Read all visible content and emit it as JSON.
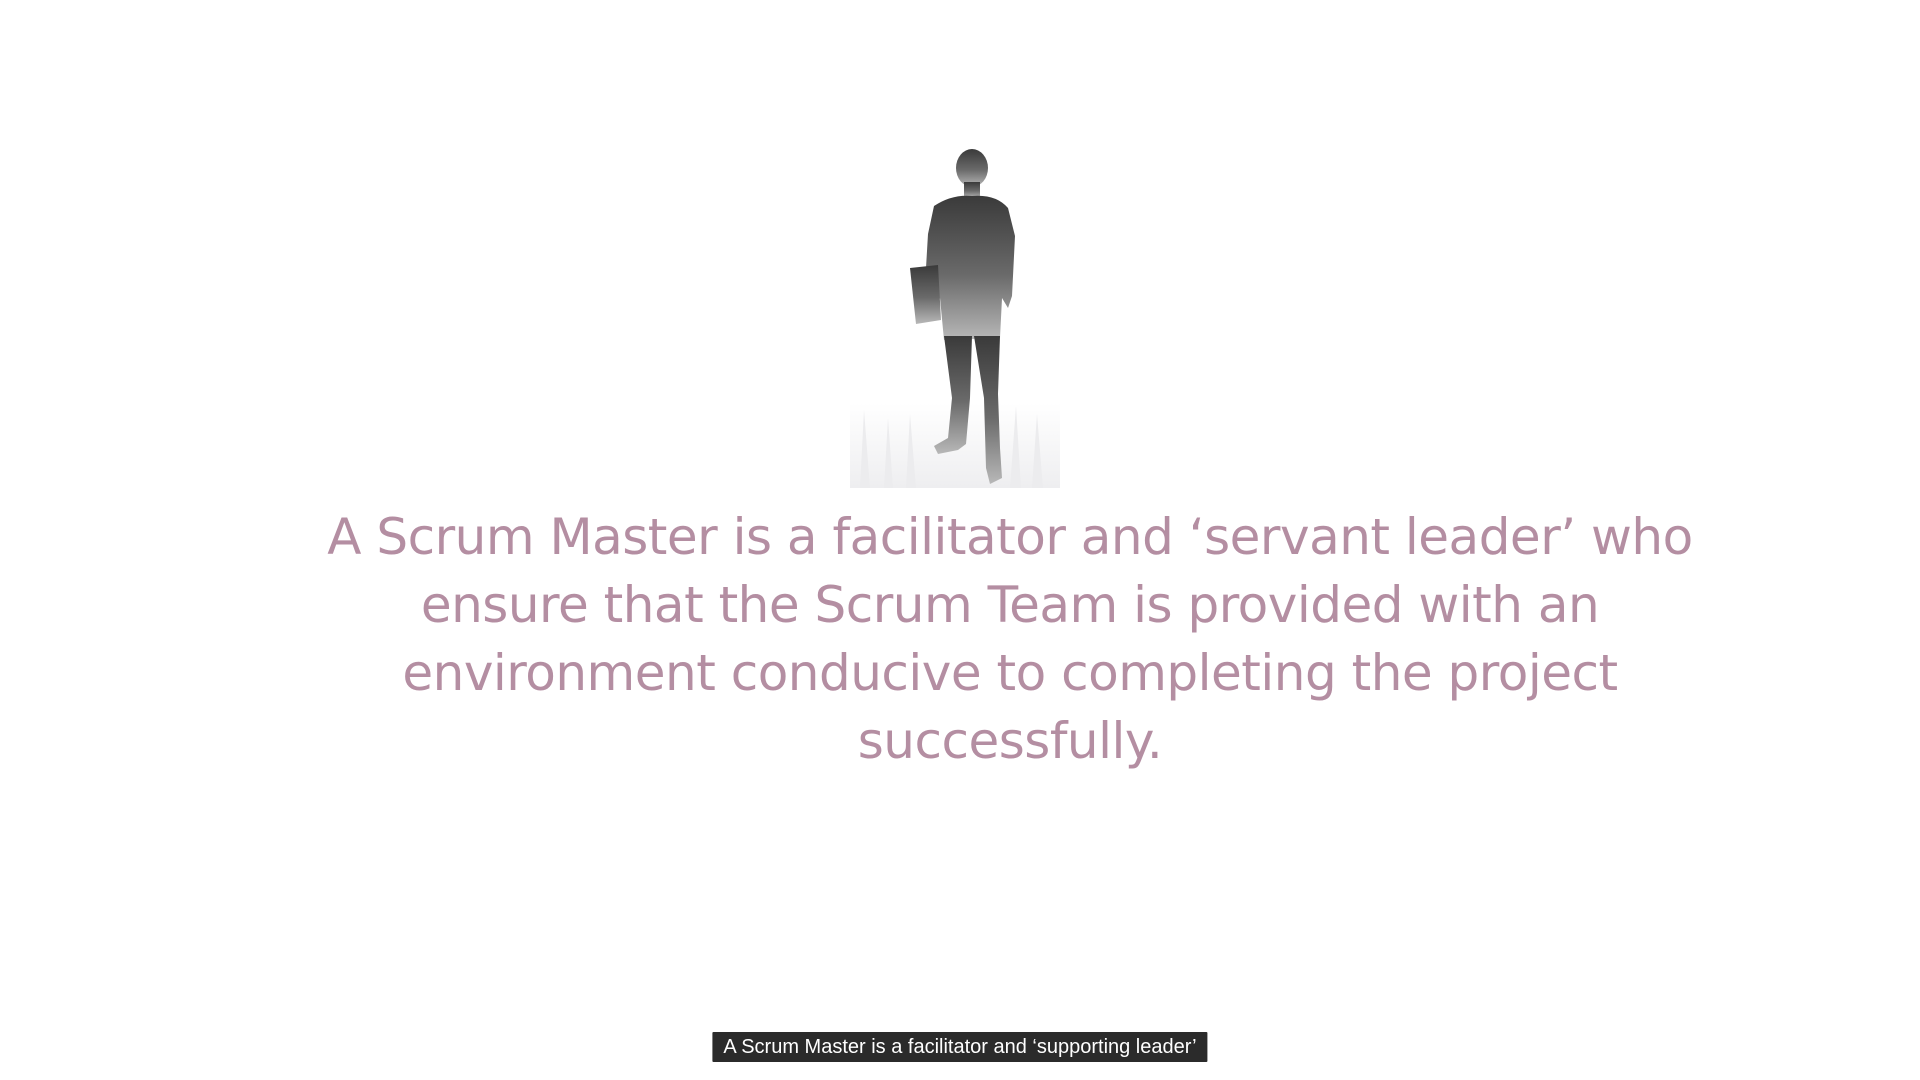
{
  "slide": {
    "statement": "A Scrum Master is a facilitator and ‘servant leader’ who ensure that the Scrum Team is provided with an environment conducive to completing the project successfully.",
    "figure_icon": "person-silhouette-icon"
  },
  "player": {
    "caption": "A Scrum Master is a facilitator and ‘supporting leader’"
  },
  "colors": {
    "statement_text": "#b48ea2",
    "caption_bg": "#2b2b2b",
    "caption_text": "#ffffff",
    "silhouette_top": "#3a3a3a",
    "silhouette_bottom": "#b8b8b8"
  }
}
